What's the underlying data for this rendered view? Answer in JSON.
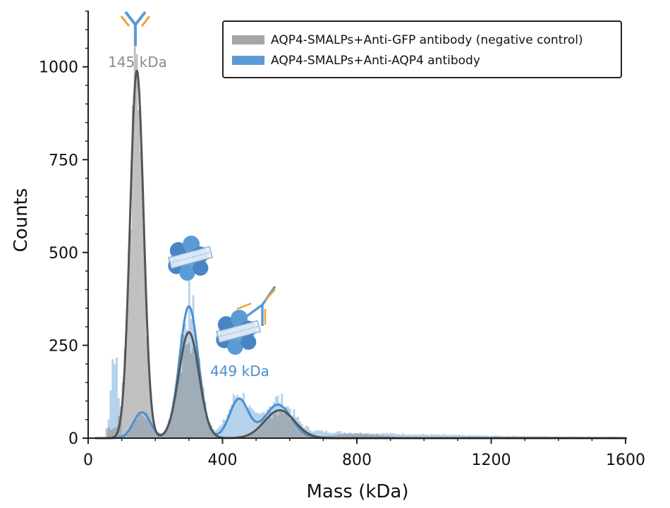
{
  "chart_data": {
    "type": "histogram",
    "title": "",
    "xlabel": "Mass (kDa)",
    "ylabel": "Counts",
    "xlim": [
      0,
      1600
    ],
    "ylim": [
      0,
      1180
    ],
    "x_ticks": [
      0,
      400,
      800,
      1200,
      1600
    ],
    "y_ticks": [
      0,
      250,
      500,
      750,
      1000
    ],
    "grid": false,
    "legend_position": "top-right",
    "series": [
      {
        "name": "AQP4-SMALPs+Anti-GFP antibody (negative control)",
        "color": "#8c8c8c",
        "fit_color": "#555555",
        "gaussian_fits": [
          {
            "center": 145,
            "height": 990,
            "sigma": 20
          },
          {
            "center": 300,
            "height": 285,
            "sigma": 30
          },
          {
            "center": 570,
            "height": 75,
            "sigma": 45
          }
        ]
      },
      {
        "name": "AQP4-SMALPs+Anti-AQP4 antibody",
        "color": "#5b9bd5",
        "fit_color": "#4a8fd0",
        "gaussian_fits": [
          {
            "center": 160,
            "height": 70,
            "sigma": 25
          },
          {
            "center": 300,
            "height": 355,
            "sigma": 28
          },
          {
            "center": 449,
            "height": 105,
            "sigma": 28
          },
          {
            "center": 565,
            "height": 90,
            "sigma": 40
          }
        ]
      }
    ],
    "annotations": [
      {
        "text": "145 kDa",
        "x": 160,
        "y": 1050,
        "color": "#8c8c8c"
      },
      {
        "text": "449 kDa",
        "x": 450,
        "y": 185,
        "color": "#4a8fd0"
      }
    ]
  },
  "icons": [
    "antibody-icon",
    "aqp4-smalp-icon",
    "aqp4-smalp-antibody-complex-icon"
  ]
}
